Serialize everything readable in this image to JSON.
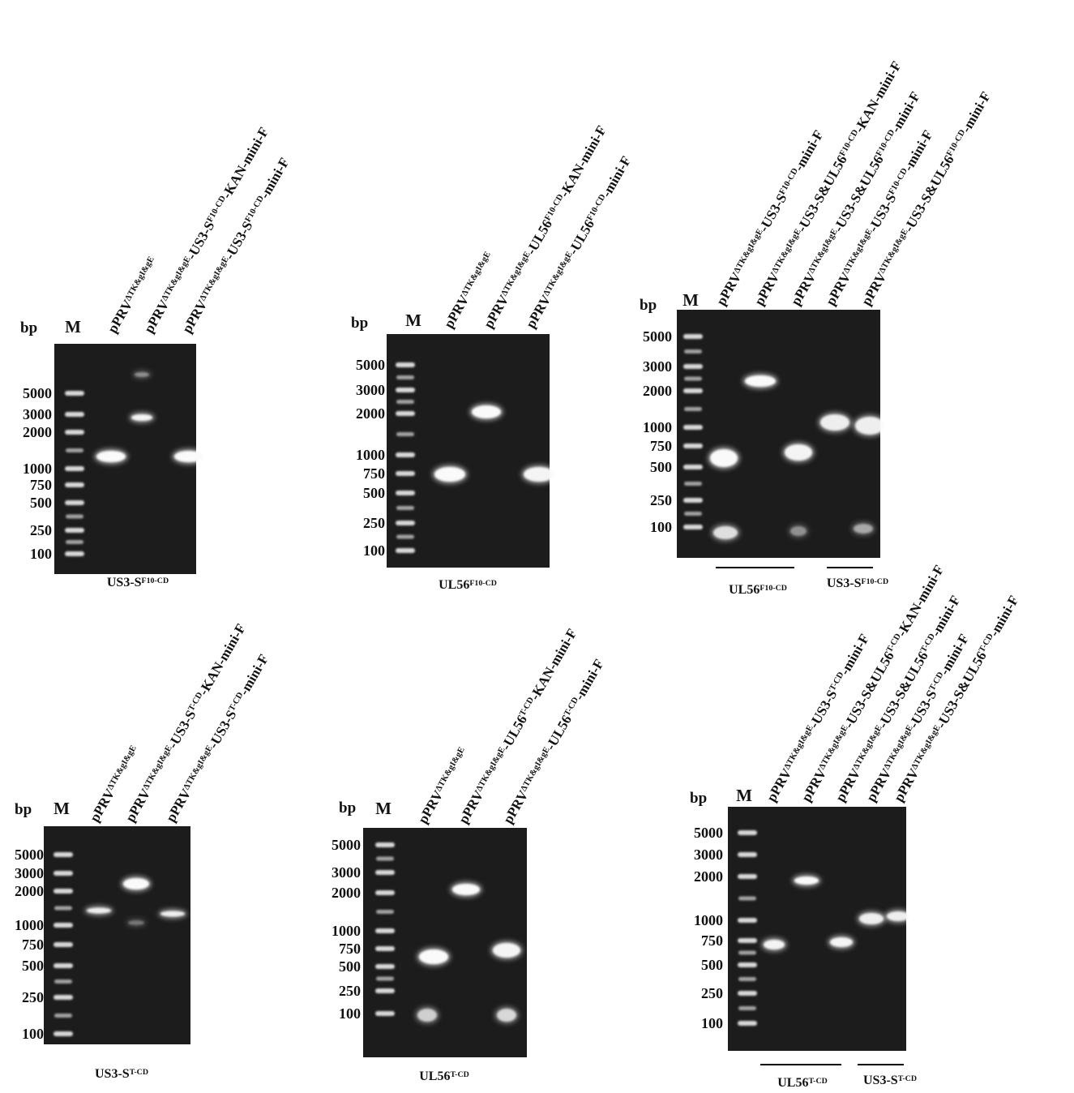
{
  "panels": [
    {
      "bp": "bp",
      "marker": "M",
      "ladder": [
        "5000",
        "3000",
        "2000",
        "1000",
        "750",
        "500",
        "250",
        "100"
      ],
      "lanes": [
        [
          "pPRV",
          "ΔTK&gI&gE"
        ],
        [
          "pPRV",
          "ΔTK&gI&gE",
          "-US3-S",
          "F10-CD",
          "-KAN-mini-F"
        ],
        [
          "pPRV",
          "ΔTK&gI&gE",
          "-US3-S",
          "F10-CD",
          "-mini-F"
        ]
      ],
      "caption": [
        "US3-S",
        "F10-CD"
      ]
    },
    {
      "bp": "bp",
      "marker": "M",
      "ladder": [
        "5000",
        "3000",
        "2000",
        "1000",
        "750",
        "500",
        "250",
        "100"
      ],
      "lanes": [
        [
          "pPRV",
          "ΔTK&gI&gE"
        ],
        [
          "pPRV",
          "ΔTK&gI&gE",
          "-UL56",
          "F10-CD",
          "-KAN-mini-F"
        ],
        [
          "pPRV",
          "ΔTK&gI&gE",
          "-UL56",
          "F10-CD",
          "-mini-F"
        ]
      ],
      "caption": [
        "UL56",
        "F10-CD"
      ]
    },
    {
      "bp": "bp",
      "marker": "M",
      "ladder": [
        "5000",
        "3000",
        "2000",
        "1000",
        "750",
        "500",
        "250",
        "100"
      ],
      "lanes": [
        [
          "pPRV",
          "ΔTK&gI&gE",
          "-US3-S",
          "F10-CD",
          "-mini-F"
        ],
        [
          "pPRV",
          "ΔTK&gI&gE",
          "-US3-S&UL56",
          "F10-CD",
          "-KAN-mini-F"
        ],
        [
          "pPRV",
          "ΔTK&gI&gE",
          "-US3-S&UL56",
          "F10-CD",
          "-mini-F"
        ],
        [
          "pPRV",
          "ΔTK&gI&gE",
          "-US3-S",
          "F10-CD",
          "-mini-F"
        ],
        [
          "pPRV",
          "ΔTK&gI&gE",
          "-US3-S&UL56",
          "F10-CD",
          "-mini-F"
        ]
      ],
      "groups": [
        [
          "UL56",
          "F10-CD"
        ],
        [
          "US3-S",
          "F10-CD"
        ]
      ]
    },
    {
      "bp": "bp",
      "marker": "M",
      "ladder": [
        "5000",
        "3000",
        "2000",
        "1000",
        "750",
        "500",
        "250",
        "100"
      ],
      "lanes": [
        [
          "pPRV",
          "ΔTK&gI&gE"
        ],
        [
          "pPRV",
          "ΔTK&gI&gE",
          "-US3-S",
          "T-CD",
          "-KAN-mini-F"
        ],
        [
          "pPRV",
          "ΔTK&gI&gE",
          "-US3-S",
          "T-CD",
          "-mini-F"
        ]
      ],
      "caption": [
        "US3-S",
        "T-CD"
      ]
    },
    {
      "bp": "bp",
      "marker": "M",
      "ladder": [
        "5000",
        "3000",
        "2000",
        "1000",
        "750",
        "500",
        "250",
        "100"
      ],
      "lanes": [
        [
          "pPRV",
          "ΔTK&gI&gE"
        ],
        [
          "pPRV",
          "ΔTK&gI&gE",
          "-UL56",
          "T-CD",
          "-KAN-mini-F"
        ],
        [
          "pPRV",
          "ΔTK&gI&gE",
          "-UL56",
          "T-CD",
          "-mini-F"
        ]
      ],
      "caption": [
        "UL56",
        "T-CD"
      ]
    },
    {
      "bp": "bp",
      "marker": "M",
      "ladder": [
        "5000",
        "3000",
        "2000",
        "1000",
        "750",
        "500",
        "250",
        "100"
      ],
      "lanes": [
        [
          "pPRV",
          "ΔTK&gI&gE",
          "-US3-S",
          "T-CD",
          "-mini-F"
        ],
        [
          "pPRV",
          "ΔTK&gI&gE",
          "-US3-S&UL56",
          "T-CD",
          "-KAN-mini-F"
        ],
        [
          "pPRV",
          "ΔTK&gI&gE",
          "-US3-S&UL56",
          "T-CD",
          "-mini-F"
        ],
        [
          "pPRV",
          "ΔTK&gI&gE",
          "-US3-S",
          "T-CD",
          "-mini-F"
        ],
        [
          "pPRV",
          "ΔTK&gI&gE",
          "-US3-S&UL56",
          "T-CD",
          "-mini-F"
        ]
      ],
      "groups": [
        [
          "UL56",
          "T-CD"
        ],
        [
          "US3-S",
          "T-CD"
        ]
      ]
    }
  ]
}
